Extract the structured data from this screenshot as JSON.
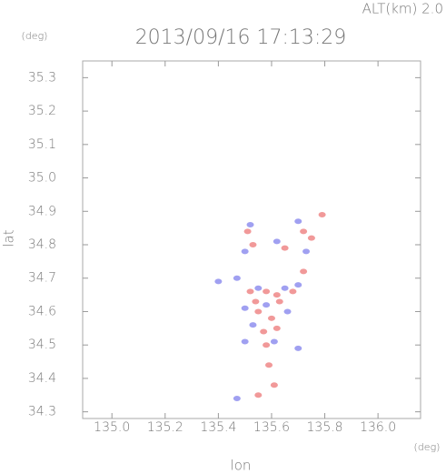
{
  "chart_data": {
    "type": "scatter",
    "title": "2013/09/16 17:13:29",
    "annotation": "ALT(km)  2.0",
    "y_unit": "(deg)",
    "x_unit": "(deg)",
    "x_label": "lon",
    "y_label": "lat",
    "xlim": [
      134.89,
      136.16
    ],
    "ylim": [
      34.28,
      35.35
    ],
    "xticks": [
      {
        "value": 135,
        "label": "135.0"
      },
      135.2,
      135.4,
      135.6,
      135.8,
      {
        "value": 136,
        "label": "136.0"
      }
    ],
    "yticks": [
      34.3,
      34.4,
      34.5,
      34.6,
      34.7,
      34.8,
      34.9,
      {
        "value": 35,
        "label": "35.0"
      },
      35.1,
      35.2,
      35.3
    ],
    "x": [
      135.52,
      135.51,
      135.53,
      135.5,
      135.62,
      135.65,
      135.7,
      135.72,
      135.75,
      135.73,
      135.79,
      135.4,
      135.47,
      135.52,
      135.55,
      135.58,
      135.62,
      135.65,
      135.68,
      135.7,
      135.54,
      135.58,
      135.63,
      135.5,
      135.55,
      135.6,
      135.66,
      135.53,
      135.57,
      135.62,
      135.5,
      135.58,
      135.61,
      135.7,
      135.59,
      135.61,
      135.55,
      135.47,
      135.72
    ],
    "y": [
      34.86,
      34.84,
      34.8,
      34.78,
      34.81,
      34.79,
      34.87,
      34.84,
      34.82,
      34.78,
      34.89,
      34.69,
      34.7,
      34.66,
      34.67,
      34.66,
      34.65,
      34.67,
      34.66,
      34.68,
      34.63,
      34.62,
      34.63,
      34.61,
      34.6,
      34.58,
      34.6,
      34.56,
      34.54,
      34.55,
      34.51,
      34.5,
      34.51,
      34.49,
      34.44,
      34.38,
      34.35,
      34.34,
      34.72
    ],
    "colors": [
      "#8888ee",
      "#ee8080",
      "#ee8080",
      "#8888ee",
      "#8888ee",
      "#ee8080",
      "#8888ee",
      "#ee8080",
      "#ee8080",
      "#8888ee",
      "#ee8080",
      "#8888ee",
      "#8888ee",
      "#ee8080",
      "#8888ee",
      "#ee8080",
      "#ee8080",
      "#8888ee",
      "#ee8080",
      "#8888ee",
      "#ee8080",
      "#8888ee",
      "#ee8080",
      "#8888ee",
      "#ee8080",
      "#ee8080",
      "#8888ee",
      "#8888ee",
      "#ee8080",
      "#ee8080",
      "#8888ee",
      "#ee8080",
      "#8888ee",
      "#8888ee",
      "#ee8080",
      "#ee8080",
      "#ee8080",
      "#8888ee",
      "#ee8080"
    ]
  }
}
